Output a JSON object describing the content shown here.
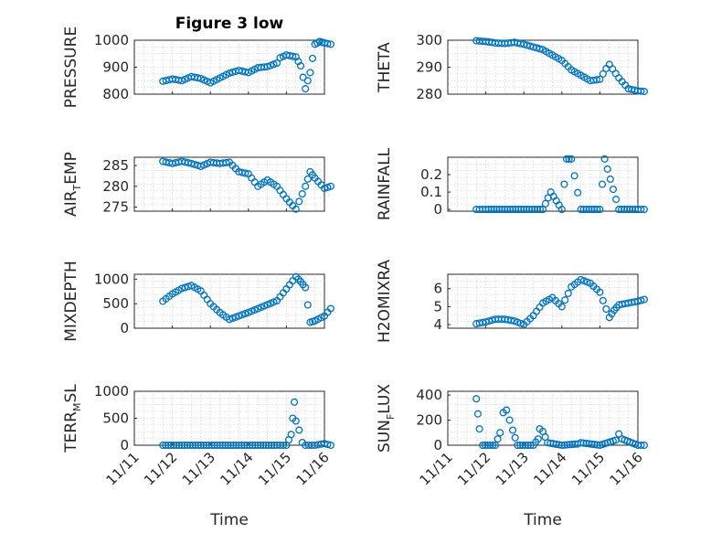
{
  "figure": {
    "title": "Figure 3 low",
    "xlabel": "Time",
    "marker_color": "#0072BD"
  },
  "chart_data": [
    {
      "type": "scatter",
      "id": "pressure",
      "title": "Figure 3 low",
      "ylabel": "PRESSURE",
      "ylim": [
        800,
        1000
      ],
      "yticks": [
        800,
        900,
        1000
      ],
      "xlim": [
        "11/11",
        "11/16"
      ],
      "xticks": [
        "11/11",
        "11/12",
        "11/13",
        "11/14",
        "11/15",
        "11/16"
      ],
      "show_xticks": false,
      "grid": true,
      "points": [
        [
          "11/11 18:00",
          848
        ],
        [
          "11/12 00:00",
          856
        ],
        [
          "11/12 06:00",
          850
        ],
        [
          "11/12 12:00",
          865
        ],
        [
          "11/12 18:00",
          858
        ],
        [
          "11/13 00:00",
          842
        ],
        [
          "11/13 06:00",
          860
        ],
        [
          "11/13 12:00",
          878
        ],
        [
          "11/13 18:00",
          888
        ],
        [
          "11/14 00:00",
          880
        ],
        [
          "11/14 06:00",
          898
        ],
        [
          "11/14 12:00",
          902
        ],
        [
          "11/14 18:00",
          915
        ],
        [
          "11/14 20:00",
          935
        ],
        [
          "11/15 00:00",
          945
        ],
        [
          "11/15 06:00",
          938
        ],
        [
          "11/15 09:00",
          905
        ],
        [
          "11/15 12:00",
          820
        ],
        [
          "11/15 15:00",
          880
        ],
        [
          "11/15 18:00",
          985
        ],
        [
          "11/15 21:00",
          995
        ],
        [
          "11/16 00:00",
          990
        ],
        [
          "11/16 04:00",
          985
        ]
      ]
    },
    {
      "type": "scatter",
      "id": "theta",
      "ylabel": "THETA",
      "ylim": [
        280,
        300
      ],
      "yticks": [
        280,
        290,
        300
      ],
      "xlim": [
        "11/11",
        "11/16"
      ],
      "xticks": [
        "11/11",
        "11/12",
        "11/13",
        "11/14",
        "11/15",
        "11/16"
      ],
      "show_xticks": false,
      "grid": true,
      "points": [
        [
          "11/11 18:00",
          299.8
        ],
        [
          "11/12 00:00",
          299.5
        ],
        [
          "11/12 06:00",
          299
        ],
        [
          "11/12 12:00",
          298.8
        ],
        [
          "11/12 18:00",
          299.2
        ],
        [
          "11/13 00:00",
          298.5
        ],
        [
          "11/13 06:00",
          297.5
        ],
        [
          "11/13 12:00",
          296.5
        ],
        [
          "11/13 18:00",
          294.5
        ],
        [
          "11/14 00:00",
          292.5
        ],
        [
          "11/14 06:00",
          289
        ],
        [
          "11/14 12:00",
          287
        ],
        [
          "11/14 18:00",
          285
        ],
        [
          "11/15 00:00",
          285.5
        ],
        [
          "11/15 04:00",
          289.5
        ],
        [
          "11/15 06:00",
          291
        ],
        [
          "11/15 12:00",
          286
        ],
        [
          "11/15 18:00",
          282
        ],
        [
          "11/16 00:00",
          281.2
        ],
        [
          "11/16 04:00",
          281
        ]
      ]
    },
    {
      "type": "scatter",
      "id": "air_temp",
      "ylabel": "AIR",
      "ylabel_sub": "T",
      "ylabel_rest": "EMP",
      "ylim": [
        274,
        287
      ],
      "yticks": [
        275,
        280,
        285
      ],
      "xlim": [
        "11/11",
        "11/16"
      ],
      "xticks": [
        "11/11",
        "11/12",
        "11/13",
        "11/14",
        "11/15",
        "11/16"
      ],
      "show_xticks": false,
      "grid": true,
      "points": [
        [
          "11/11 18:00",
          286
        ],
        [
          "11/12 00:00",
          285.5
        ],
        [
          "11/12 06:00",
          286
        ],
        [
          "11/12 12:00",
          285.5
        ],
        [
          "11/12 18:00",
          284.8
        ],
        [
          "11/13 00:00",
          285.8
        ],
        [
          "11/13 06:00",
          285.5
        ],
        [
          "11/13 12:00",
          285.8
        ],
        [
          "11/13 18:00",
          283.5
        ],
        [
          "11/14 00:00",
          283
        ],
        [
          "11/14 06:00",
          280
        ],
        [
          "11/14 12:00",
          281.5
        ],
        [
          "11/14 18:00",
          280
        ],
        [
          "11/15 00:00",
          277
        ],
        [
          "11/15 06:00",
          274.5
        ],
        [
          "11/15 12:00",
          280
        ],
        [
          "11/15 15:00",
          283.5
        ],
        [
          "11/15 18:00",
          282
        ],
        [
          "11/16 00:00",
          279.5
        ],
        [
          "11/16 04:00",
          280
        ]
      ]
    },
    {
      "type": "scatter",
      "id": "rainfall",
      "ylabel": "RAINFALL",
      "ylim": [
        -0.01,
        0.3
      ],
      "yticks": [
        0,
        0.1,
        0.2
      ],
      "xlim": [
        "11/11",
        "11/16"
      ],
      "xticks": [
        "11/11",
        "11/12",
        "11/13",
        "11/14",
        "11/15",
        "11/16"
      ],
      "show_xticks": false,
      "grid": true,
      "points": [
        [
          "11/11 18:00",
          0
        ],
        [
          "11/12 00:00",
          0
        ],
        [
          "11/12 12:00",
          0
        ],
        [
          "11/13 00:00",
          0
        ],
        [
          "11/13 12:00",
          0
        ],
        [
          "11/13 17:00",
          0.1
        ],
        [
          "11/14 00:00",
          0
        ],
        [
          "11/14 03:00",
          0.29
        ],
        [
          "11/14 06:00",
          0.29
        ],
        [
          "11/14 12:00",
          0
        ],
        [
          "11/15 00:00",
          0
        ],
        [
          "11/15 03:00",
          0.29
        ],
        [
          "11/15 12:00",
          0
        ],
        [
          "11/16 00:00",
          0
        ],
        [
          "11/16 04:00",
          0
        ]
      ]
    },
    {
      "type": "scatter",
      "id": "mixdepth",
      "ylabel": "MIXDEPTH",
      "ylim": [
        0,
        1100
      ],
      "yticks": [
        0,
        500,
        1000
      ],
      "xlim": [
        "11/11",
        "11/16"
      ],
      "xticks": [
        "11/11",
        "11/12",
        "11/13",
        "11/14",
        "11/15",
        "11/16"
      ],
      "show_xticks": false,
      "grid": true,
      "points": [
        [
          "11/11 18:00",
          550
        ],
        [
          "11/12 00:00",
          700
        ],
        [
          "11/12 06:00",
          810
        ],
        [
          "11/12 12:00",
          870
        ],
        [
          "11/12 18:00",
          760
        ],
        [
          "11/13 00:00",
          500
        ],
        [
          "11/13 06:00",
          320
        ],
        [
          "11/13 12:00",
          180
        ],
        [
          "11/13 18:00",
          250
        ],
        [
          "11/14 00:00",
          320
        ],
        [
          "11/14 06:00",
          400
        ],
        [
          "11/14 12:00",
          480
        ],
        [
          "11/14 18:00",
          560
        ],
        [
          "11/15 00:00",
          800
        ],
        [
          "11/15 06:00",
          1050
        ],
        [
          "11/15 09:00",
          950
        ],
        [
          "11/15 12:00",
          830
        ],
        [
          "11/15 15:00",
          120
        ],
        [
          "11/15 18:00",
          150
        ],
        [
          "11/16 00:00",
          250
        ],
        [
          "11/16 04:00",
          400
        ]
      ]
    },
    {
      "type": "scatter",
      "id": "h2omixra",
      "ylabel": "H2OMIXRA",
      "ylim": [
        3.8,
        6.8
      ],
      "yticks": [
        4,
        5,
        6
      ],
      "xlim": [
        "11/11",
        "11/16"
      ],
      "xticks": [
        "11/11",
        "11/12",
        "11/13",
        "11/14",
        "11/15",
        "11/16"
      ],
      "show_xticks": false,
      "grid": true,
      "points": [
        [
          "11/11 18:00",
          4.05
        ],
        [
          "11/12 00:00",
          4.15
        ],
        [
          "11/12 06:00",
          4.3
        ],
        [
          "11/12 12:00",
          4.3
        ],
        [
          "11/12 18:00",
          4.2
        ],
        [
          "11/13 00:00",
          4.0
        ],
        [
          "11/13 06:00",
          4.5
        ],
        [
          "11/13 12:00",
          5.2
        ],
        [
          "11/13 18:00",
          5.5
        ],
        [
          "11/14 00:00",
          5.0
        ],
        [
          "11/14 06:00",
          6.1
        ],
        [
          "11/14 12:00",
          6.5
        ],
        [
          "11/14 18:00",
          6.3
        ],
        [
          "11/15 00:00",
          5.8
        ],
        [
          "11/15 06:00",
          4.4
        ],
        [
          "11/15 09:00",
          4.8
        ],
        [
          "11/15 12:00",
          5.1
        ],
        [
          "11/15 18:00",
          5.2
        ],
        [
          "11/16 00:00",
          5.3
        ],
        [
          "11/16 04:00",
          5.4
        ]
      ]
    },
    {
      "type": "scatter",
      "id": "terr_msl",
      "ylabel": "TERR",
      "ylabel_sub": "M",
      "ylabel_rest": "SL",
      "ylim": [
        0,
        1000
      ],
      "yticks": [
        0,
        500,
        1000
      ],
      "xlim": [
        "11/11",
        "11/16"
      ],
      "xticks": [
        "11/11",
        "11/12",
        "11/13",
        "11/14",
        "11/15",
        "11/16"
      ],
      "show_xticks": true,
      "grid": true,
      "points": [
        [
          "11/11 18:00",
          0
        ],
        [
          "11/12 06:00",
          0
        ],
        [
          "11/12 18:00",
          0
        ],
        [
          "11/13 06:00",
          0
        ],
        [
          "11/13 18:00",
          0
        ],
        [
          "11/14 06:00",
          0
        ],
        [
          "11/14 18:00",
          0
        ],
        [
          "11/15 00:00",
          0
        ],
        [
          "11/15 03:00",
          200
        ],
        [
          "11/15 04:00",
          500
        ],
        [
          "11/15 05:00",
          800
        ],
        [
          "11/15 06:00",
          450
        ],
        [
          "11/15 08:00",
          280
        ],
        [
          "11/15 10:00",
          50
        ],
        [
          "11/15 12:00",
          0
        ],
        [
          "11/15 18:00",
          0
        ],
        [
          "11/16 00:00",
          30
        ],
        [
          "11/16 04:00",
          0
        ]
      ]
    },
    {
      "type": "scatter",
      "id": "sun_flux",
      "ylabel": "SUN",
      "ylabel_sub": "F",
      "ylabel_rest": "LUX",
      "ylim": [
        0,
        430
      ],
      "yticks": [
        0,
        200,
        400
      ],
      "xlim": [
        "11/11",
        "11/16"
      ],
      "xticks": [
        "11/11",
        "11/12",
        "11/13",
        "11/14",
        "11/15",
        "11/16"
      ],
      "show_xticks": true,
      "grid": true,
      "points": [
        [
          "11/11 18:00",
          370
        ],
        [
          "11/11 19:00",
          250
        ],
        [
          "11/11 20:00",
          130
        ],
        [
          "11/11 22:00",
          0
        ],
        [
          "11/12 06:00",
          0
        ],
        [
          "11/12 09:00",
          100
        ],
        [
          "11/12 11:00",
          260
        ],
        [
          "11/12 13:00",
          280
        ],
        [
          "11/12 15:00",
          200
        ],
        [
          "11/12 17:00",
          120
        ],
        [
          "11/12 20:00",
          0
        ],
        [
          "11/13 06:00",
          0
        ],
        [
          "11/13 09:00",
          50
        ],
        [
          "11/13 10:00",
          130
        ],
        [
          "11/13 12:00",
          110
        ],
        [
          "11/13 15:00",
          20
        ],
        [
          "11/14 00:00",
          0
        ],
        [
          "11/14 10:00",
          10
        ],
        [
          "11/14 12:00",
          20
        ],
        [
          "11/15 00:00",
          0
        ],
        [
          "11/15 10:00",
          40
        ],
        [
          "11/15 12:00",
          90
        ],
        [
          "11/15 14:00",
          50
        ],
        [
          "11/16 00:00",
          0
        ],
        [
          "11/16 04:00",
          0
        ]
      ]
    }
  ]
}
